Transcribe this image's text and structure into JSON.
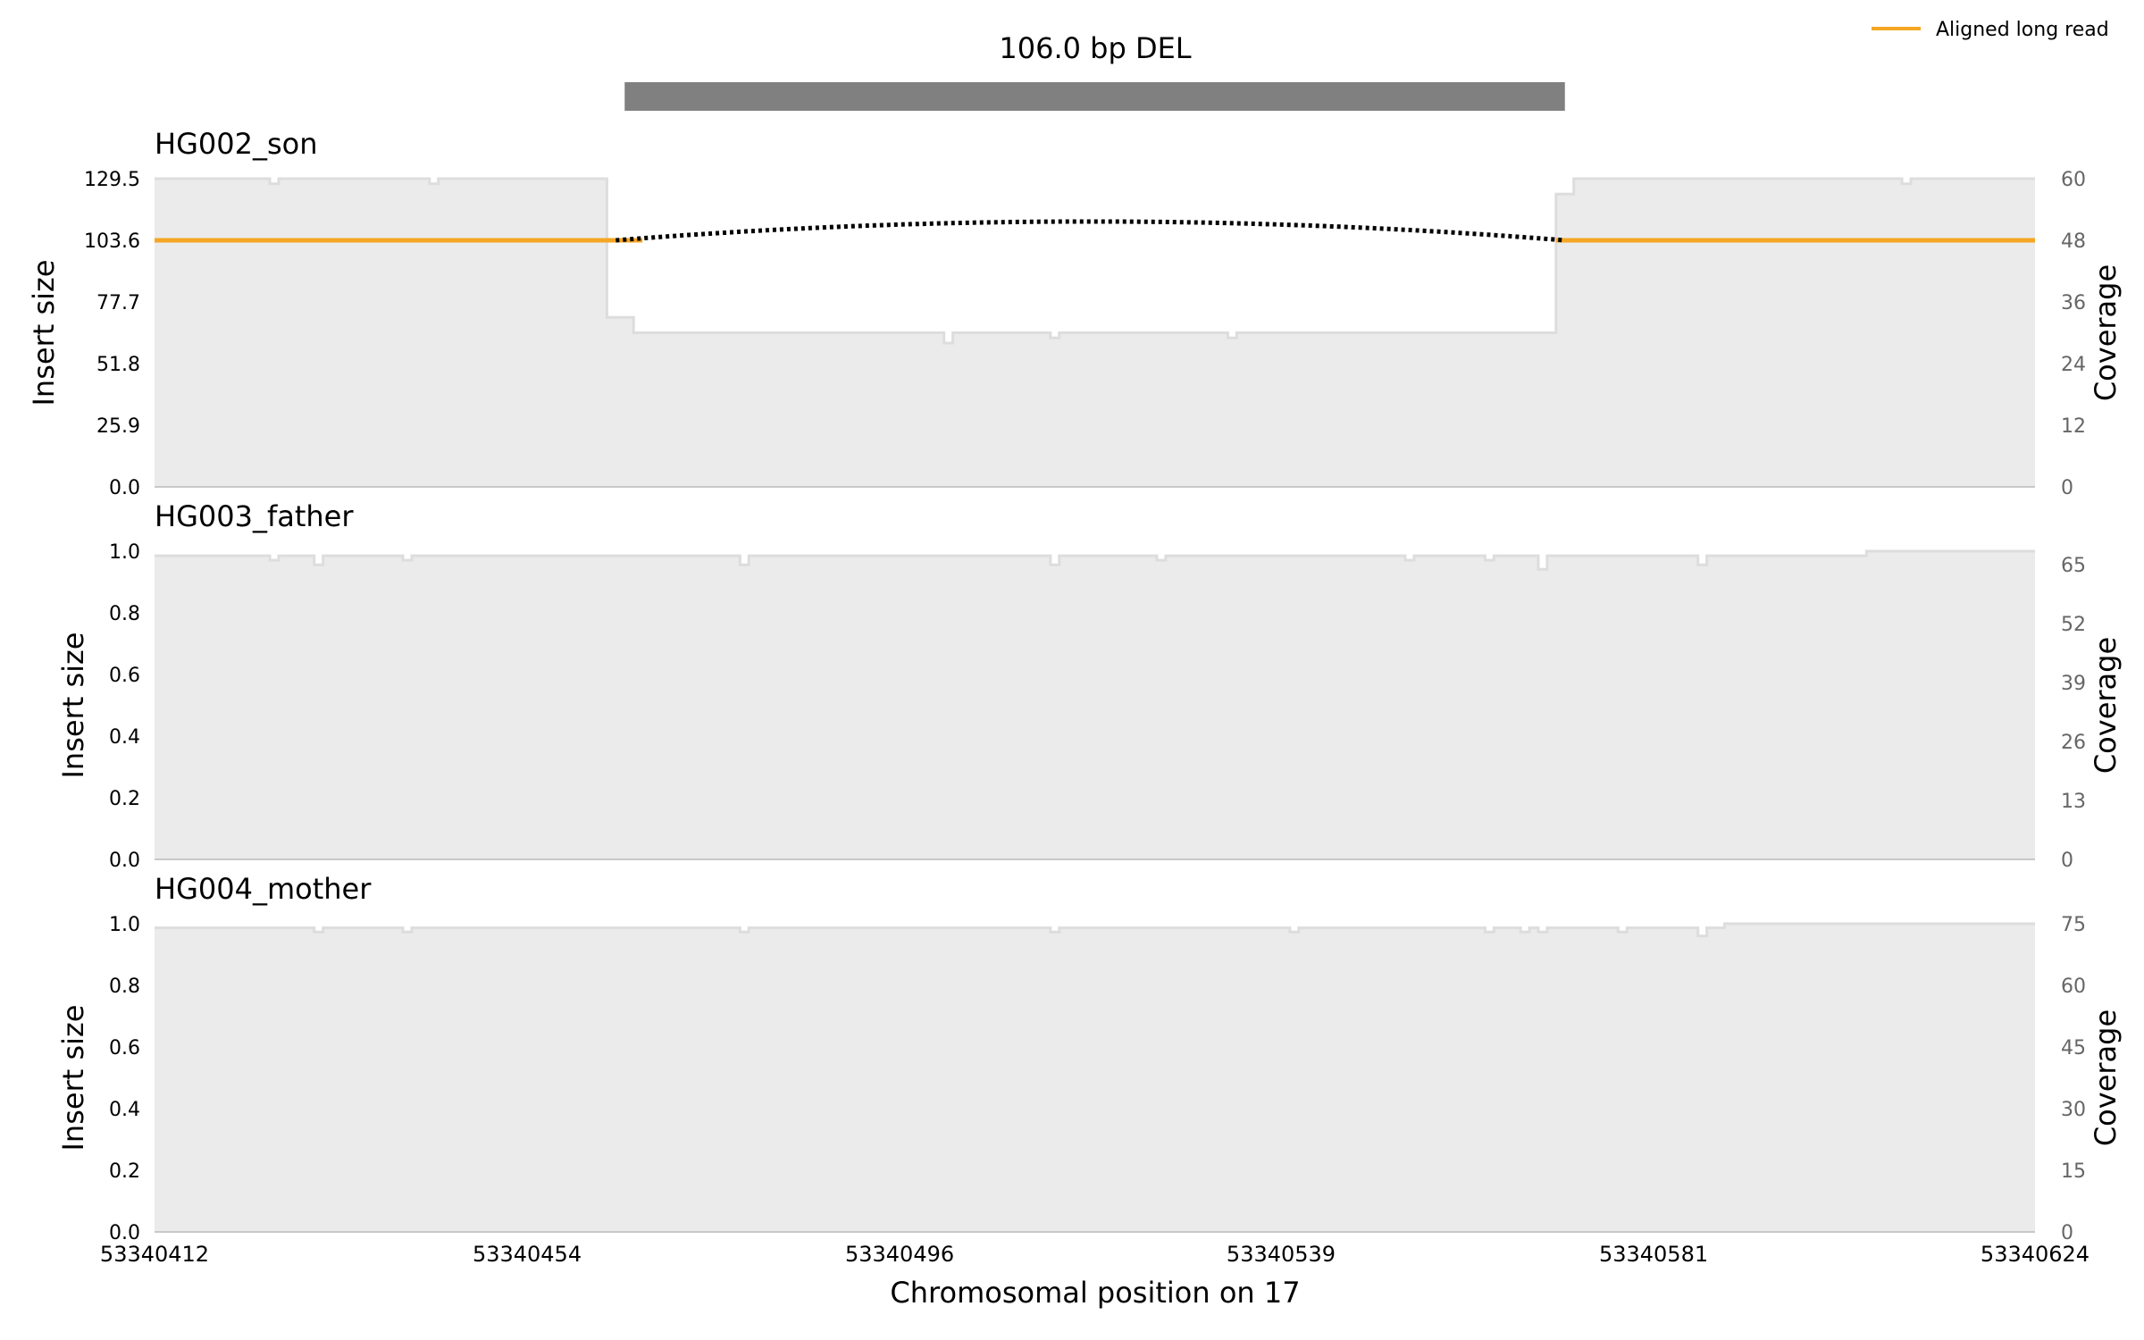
{
  "chart_data": {
    "type": "area",
    "title": "106.0 bp DEL",
    "variant": {
      "type": "DEL",
      "length_bp": 106.0,
      "start": 53340465,
      "end": 53340571
    },
    "legend": {
      "placement": "top-right",
      "entries": [
        {
          "label": "Aligned long read",
          "color": "#f5a623"
        }
      ]
    },
    "xlabel": "Chromosomal position on 17",
    "xlim": [
      53340412,
      53340624
    ],
    "xticks": [
      "53340412",
      "53340454",
      "53340496",
      "53340539",
      "53340581",
      "53340624"
    ],
    "colors": {
      "coverage_fill": "#ebebeb",
      "coverage_line": "#dddddd",
      "read": "#f5a623",
      "split_arc": "#000000",
      "variant_bar": "#808080"
    },
    "panels": [
      {
        "sample": "HG002_son",
        "ylabel_left": "Insert size",
        "ylabel_right": "Coverage",
        "ylim_left": [
          0,
          129.5
        ],
        "left_ticks": [
          "0.0",
          "25.9",
          "51.8",
          "77.7",
          "103.6",
          "129.5"
        ],
        "ylim_right": [
          0,
          60
        ],
        "right_ticks": [
          "0",
          "12",
          "24",
          "36",
          "48",
          "60"
        ],
        "coverage": [
          [
            53340412,
            60
          ],
          [
            53340425,
            59
          ],
          [
            53340426,
            60
          ],
          [
            53340443,
            59
          ],
          [
            53340444,
            60
          ],
          [
            53340463,
            33
          ],
          [
            53340466,
            30
          ],
          [
            53340501,
            28
          ],
          [
            53340502,
            30
          ],
          [
            53340513,
            29
          ],
          [
            53340514,
            30
          ],
          [
            53340533,
            29
          ],
          [
            53340534,
            30
          ],
          [
            53340570,
            57
          ],
          [
            53340572,
            60
          ],
          [
            53340609,
            59
          ],
          [
            53340610,
            60
          ],
          [
            53340624,
            60
          ]
        ],
        "reads": [
          {
            "y": 103.6,
            "segments": [
              [
                53340412,
                53340467
              ],
              [
                53340570,
                53340624
              ]
            ]
          }
        ],
        "split_arcs": [
          {
            "from": 53340464,
            "to": 53340571,
            "y": 103.6,
            "peak": 111.5
          }
        ]
      },
      {
        "sample": "HG003_father",
        "ylabel_left": "Insert size",
        "ylabel_right": "Coverage",
        "ylim_left": [
          0,
          1
        ],
        "left_ticks": [
          "0.0",
          "0.2",
          "0.4",
          "0.6",
          "0.8",
          "1.0"
        ],
        "ylim_right": [
          0,
          68
        ],
        "right_ticks": [
          "0",
          "13",
          "26",
          "39",
          "52",
          "65"
        ],
        "coverage": [
          [
            53340412,
            67
          ],
          [
            53340425,
            66
          ],
          [
            53340426,
            67
          ],
          [
            53340430,
            65
          ],
          [
            53340431,
            67
          ],
          [
            53340440,
            66
          ],
          [
            53340441,
            67
          ],
          [
            53340478,
            65
          ],
          [
            53340479,
            67
          ],
          [
            53340513,
            65
          ],
          [
            53340514,
            67
          ],
          [
            53340525,
            66
          ],
          [
            53340526,
            67
          ],
          [
            53340553,
            66
          ],
          [
            53340554,
            67
          ],
          [
            53340562,
            66
          ],
          [
            53340563,
            67
          ],
          [
            53340568,
            64
          ],
          [
            53340569,
            67
          ],
          [
            53340586,
            65
          ],
          [
            53340587,
            67
          ],
          [
            53340605,
            68
          ],
          [
            53340624,
            68
          ]
        ],
        "reads": [],
        "split_arcs": []
      },
      {
        "sample": "HG004_mother",
        "ylabel_left": "Insert size",
        "ylabel_right": "Coverage",
        "ylim_left": [
          0,
          1
        ],
        "left_ticks": [
          "0.0",
          "0.2",
          "0.4",
          "0.6",
          "0.8",
          "1.0"
        ],
        "ylim_right": [
          0,
          75
        ],
        "right_ticks": [
          "0",
          "15",
          "30",
          "45",
          "60",
          "75"
        ],
        "coverage": [
          [
            53340412,
            74
          ],
          [
            53340430,
            73
          ],
          [
            53340431,
            74
          ],
          [
            53340440,
            73
          ],
          [
            53340441,
            74
          ],
          [
            53340478,
            73
          ],
          [
            53340479,
            74
          ],
          [
            53340513,
            73
          ],
          [
            53340514,
            74
          ],
          [
            53340540,
            73
          ],
          [
            53340541,
            74
          ],
          [
            53340562,
            73
          ],
          [
            53340563,
            74
          ],
          [
            53340566,
            73
          ],
          [
            53340567,
            74
          ],
          [
            53340568,
            73
          ],
          [
            53340569,
            74
          ],
          [
            53340577,
            73
          ],
          [
            53340578,
            74
          ],
          [
            53340586,
            72
          ],
          [
            53340587,
            74
          ],
          [
            53340589,
            75
          ],
          [
            53340624,
            75
          ]
        ],
        "reads": [],
        "split_arcs": []
      }
    ]
  }
}
